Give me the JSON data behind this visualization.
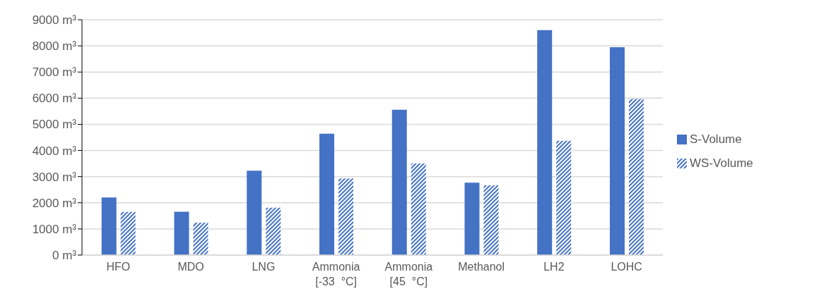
{
  "chart_data": {
    "type": "bar",
    "categories": [
      "HFO",
      "MDO",
      "LNG",
      "Ammonia [-33  °C]",
      "Ammonia [45  °C]",
      "Methanol",
      "LH2",
      "LOHC"
    ],
    "series": [
      {
        "name": "S-Volume",
        "color": "#4472c4",
        "values": [
          2200,
          1660,
          3230,
          4640,
          5560,
          2770,
          8600,
          7950
        ]
      },
      {
        "name": "WS-Volume",
        "color": "#4472c4",
        "values": [
          1650,
          1240,
          1810,
          2930,
          3500,
          2670,
          4370,
          5970
        ]
      }
    ],
    "ylim": [
      0,
      9000
    ],
    "yticks": [
      {
        "value": 0,
        "label": "0 m³"
      },
      {
        "value": 1000,
        "label": "1000 m³"
      },
      {
        "value": 2000,
        "label": "2000 m³"
      },
      {
        "value": 3000,
        "label": "3000 m³"
      },
      {
        "value": 4000,
        "label": "4000 m³"
      },
      {
        "value": 5000,
        "label": "5000 m³"
      },
      {
        "value": 6000,
        "label": "6000 m³"
      },
      {
        "value": 7000,
        "label": "7000 m³"
      },
      {
        "value": 8000,
        "label": "8000 m³"
      },
      {
        "value": 9000,
        "label": "9000 m³"
      }
    ],
    "grid": "y",
    "legend": "right"
  }
}
